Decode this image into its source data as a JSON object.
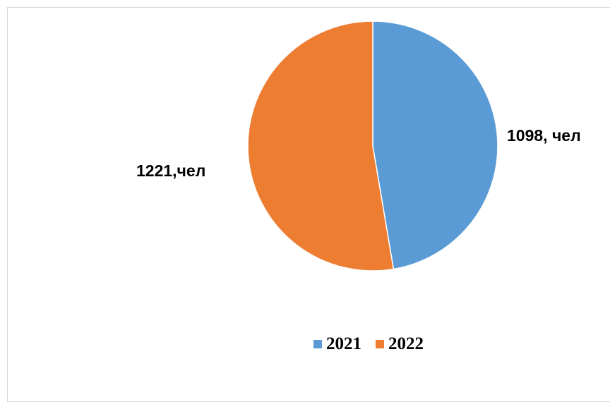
{
  "chart_data": {
    "type": "pie",
    "categories": [
      "2021",
      "2022"
    ],
    "values": [
      1098,
      1221
    ],
    "data_labels": [
      "1098, чел",
      "1221,чел"
    ],
    "colors": [
      "#5b9bd5",
      "#ed7d31"
    ],
    "legend": {
      "placement": "bottom",
      "entries": [
        "2021",
        "2022"
      ]
    },
    "start_angle_deg": 0,
    "direction": "clockwise"
  }
}
